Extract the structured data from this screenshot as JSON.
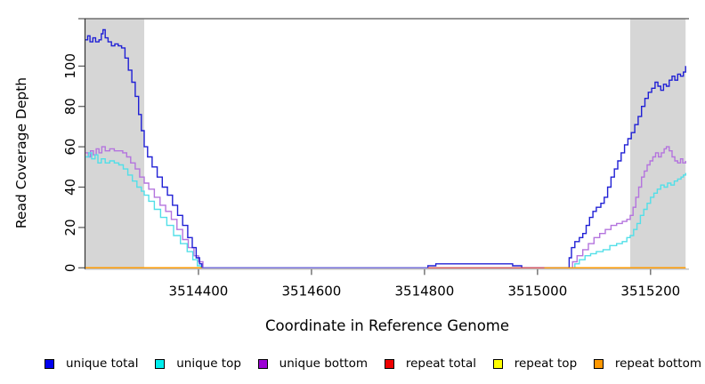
{
  "chart_data": {
    "type": "line",
    "title": "",
    "xlabel": "Coordinate in Reference Genome",
    "ylabel": "Read Coverage Depth",
    "xlim": [
      3514200,
      3515268
    ],
    "ylim": [
      0,
      123.5
    ],
    "xticks": [
      3514400,
      3514600,
      3514800,
      3515000,
      3515200
    ],
    "yticks": [
      0,
      20,
      40,
      60,
      80,
      100
    ],
    "grid": false,
    "legend_position": "bottom",
    "shade_color": "#d6d6d6",
    "shaded_regions": [
      {
        "x0": 3514200,
        "x1": 3514304
      },
      {
        "x0": 3515164,
        "x1": 3515262
      }
    ],
    "series": [
      {
        "name": "unique total",
        "color": "#2020d5",
        "legend_color": "#0000ee",
        "step": true,
        "segments": [
          [
            [
              3514200,
              113
            ],
            [
              3514204,
              115
            ],
            [
              3514208,
              112
            ],
            [
              3514213,
              114
            ],
            [
              3514218,
              112
            ],
            [
              3514224,
              113
            ],
            [
              3514228,
              116
            ],
            [
              3514231,
              118
            ],
            [
              3514235,
              114
            ],
            [
              3514240,
              112
            ],
            [
              3514246,
              110
            ],
            [
              3514252,
              111
            ],
            [
              3514258,
              110
            ],
            [
              3514264,
              109
            ],
            [
              3514270,
              104
            ],
            [
              3514276,
              98
            ],
            [
              3514282,
              92
            ],
            [
              3514288,
              85
            ],
            [
              3514294,
              76
            ],
            [
              3514299,
              68
            ],
            [
              3514304,
              60
            ],
            [
              3514310,
              55
            ],
            [
              3514318,
              50
            ],
            [
              3514327,
              45
            ],
            [
              3514336,
              40
            ],
            [
              3514345,
              36
            ],
            [
              3514354,
              31
            ],
            [
              3514363,
              26
            ],
            [
              3514372,
              21
            ],
            [
              3514381,
              15
            ],
            [
              3514389,
              10
            ],
            [
              3514396,
              5
            ],
            [
              3514402,
              2
            ],
            [
              3514406,
              0
            ],
            [
              3514800,
              0
            ],
            [
              3514806,
              1
            ],
            [
              3514820,
              2
            ],
            [
              3514948,
              2
            ],
            [
              3514956,
              1
            ],
            [
              3514972,
              0
            ],
            [
              3515052,
              0
            ],
            [
              3515056,
              5
            ],
            [
              3515060,
              10
            ],
            [
              3515066,
              13
            ],
            [
              3515074,
              15
            ],
            [
              3515080,
              17
            ],
            [
              3515086,
              21
            ],
            [
              3515092,
              25
            ],
            [
              3515098,
              28
            ],
            [
              3515104,
              30
            ],
            [
              3515112,
              32
            ],
            [
              3515118,
              35
            ],
            [
              3515124,
              40
            ],
            [
              3515130,
              45
            ],
            [
              3515136,
              49
            ],
            [
              3515142,
              53
            ],
            [
              3515148,
              57
            ],
            [
              3515154,
              61
            ],
            [
              3515160,
              64
            ],
            [
              3515166,
              67
            ],
            [
              3515172,
              71
            ],
            [
              3515178,
              75
            ],
            [
              3515184,
              80
            ],
            [
              3515190,
              84
            ],
            [
              3515196,
              87
            ],
            [
              3515202,
              89
            ],
            [
              3515208,
              92
            ],
            [
              3515213,
              90
            ],
            [
              3515218,
              88
            ],
            [
              3515223,
              91
            ],
            [
              3515228,
              90
            ],
            [
              3515233,
              93
            ],
            [
              3515238,
              95
            ],
            [
              3515243,
              93
            ],
            [
              3515248,
              96
            ],
            [
              3515253,
              95
            ],
            [
              3515258,
              97
            ],
            [
              3515262,
              100
            ]
          ]
        ]
      },
      {
        "name": "unique top",
        "color": "#52dfe8",
        "legend_color": "#00eeee",
        "step": true,
        "segments": [
          [
            [
              3514200,
              55
            ],
            [
              3514206,
              57
            ],
            [
              3514211,
              54
            ],
            [
              3514217,
              56
            ],
            [
              3514222,
              52
            ],
            [
              3514228,
              54
            ],
            [
              3514235,
              52
            ],
            [
              3514243,
              53
            ],
            [
              3514251,
              52
            ],
            [
              3514259,
              51
            ],
            [
              3514267,
              49
            ],
            [
              3514275,
              46
            ],
            [
              3514283,
              43
            ],
            [
              3514291,
              40
            ],
            [
              3514299,
              38
            ],
            [
              3514304,
              36
            ],
            [
              3514312,
              33
            ],
            [
              3514322,
              29
            ],
            [
              3514333,
              25
            ],
            [
              3514344,
              21
            ],
            [
              3514356,
              16
            ],
            [
              3514368,
              12
            ],
            [
              3514380,
              8
            ],
            [
              3514390,
              4
            ],
            [
              3514398,
              1
            ],
            [
              3514404,
              0
            ],
            [
              3515058,
              0
            ],
            [
              3515066,
              2
            ],
            [
              3515074,
              4
            ],
            [
              3515084,
              6
            ],
            [
              3515094,
              7
            ],
            [
              3515104,
              8
            ],
            [
              3515116,
              9
            ],
            [
              3515128,
              11
            ],
            [
              3515140,
              12
            ],
            [
              3515150,
              13
            ],
            [
              3515158,
              15
            ],
            [
              3515164,
              16
            ],
            [
              3515170,
              19
            ],
            [
              3515176,
              22
            ],
            [
              3515182,
              26
            ],
            [
              3515188,
              29
            ],
            [
              3515194,
              32
            ],
            [
              3515200,
              35
            ],
            [
              3515206,
              37
            ],
            [
              3515212,
              39
            ],
            [
              3515218,
              41
            ],
            [
              3515224,
              40
            ],
            [
              3515230,
              42
            ],
            [
              3515236,
              41
            ],
            [
              3515242,
              43
            ],
            [
              3515248,
              44
            ],
            [
              3515254,
              45
            ],
            [
              3515258,
              46
            ],
            [
              3515262,
              47
            ]
          ]
        ]
      },
      {
        "name": "unique bottom",
        "color": "#b474de",
        "legend_color": "#9c00d4",
        "step": true,
        "segments": [
          [
            [
              3514200,
              57
            ],
            [
              3514205,
              55
            ],
            [
              3514209,
              58
            ],
            [
              3514214,
              56
            ],
            [
              3514219,
              59
            ],
            [
              3514224,
              57
            ],
            [
              3514229,
              60
            ],
            [
              3514235,
              58
            ],
            [
              3514243,
              59
            ],
            [
              3514251,
              58
            ],
            [
              3514259,
              58
            ],
            [
              3514266,
              57
            ],
            [
              3514273,
              55
            ],
            [
              3514280,
              52
            ],
            [
              3514288,
              49
            ],
            [
              3514296,
              45
            ],
            [
              3514304,
              42
            ],
            [
              3514312,
              39
            ],
            [
              3514322,
              35
            ],
            [
              3514332,
              31
            ],
            [
              3514342,
              28
            ],
            [
              3514352,
              24
            ],
            [
              3514362,
              19
            ],
            [
              3514372,
              14
            ],
            [
              3514382,
              10
            ],
            [
              3514392,
              6
            ],
            [
              3514400,
              3
            ],
            [
              3514408,
              0
            ],
            [
              3515054,
              0
            ],
            [
              3515062,
              3
            ],
            [
              3515070,
              6
            ],
            [
              3515080,
              9
            ],
            [
              3515090,
              12
            ],
            [
              3515100,
              15
            ],
            [
              3515110,
              17
            ],
            [
              3515120,
              19
            ],
            [
              3515130,
              21
            ],
            [
              3515140,
              22
            ],
            [
              3515150,
              23
            ],
            [
              3515158,
              24
            ],
            [
              3515164,
              26
            ],
            [
              3515169,
              30
            ],
            [
              3515174,
              35
            ],
            [
              3515179,
              40
            ],
            [
              3515184,
              45
            ],
            [
              3515189,
              48
            ],
            [
              3515194,
              51
            ],
            [
              3515199,
              53
            ],
            [
              3515204,
              55
            ],
            [
              3515209,
              57
            ],
            [
              3515214,
              55
            ],
            [
              3515219,
              57
            ],
            [
              3515224,
              59
            ],
            [
              3515228,
              60
            ],
            [
              3515233,
              58
            ],
            [
              3515238,
              55
            ],
            [
              3515243,
              53
            ],
            [
              3515248,
              52
            ],
            [
              3515253,
              54
            ],
            [
              3515257,
              52
            ],
            [
              3515262,
              53
            ]
          ]
        ]
      },
      {
        "name": "repeat total",
        "color": "#e05858",
        "legend_color": "#ee0000",
        "step": true,
        "segments": [
          [
            [
              3514805,
              0
            ],
            [
              3515012,
              0
            ]
          ]
        ]
      },
      {
        "name": "repeat top",
        "color": "#ffff00",
        "legend_color": "#ffff00",
        "step": true,
        "segments": [
          [
            [
              3514200,
              0
            ],
            [
              3514405,
              0
            ]
          ],
          [
            [
              3515012,
              0
            ],
            [
              3515262,
              0
            ]
          ]
        ]
      },
      {
        "name": "repeat bottom",
        "color": "#ff9800",
        "legend_color": "#ff9800",
        "step": true,
        "segments": [
          [
            [
              3514200,
              0
            ],
            [
              3514405,
              0
            ]
          ],
          [
            [
              3515012,
              0
            ],
            [
              3515262,
              0
            ]
          ]
        ]
      }
    ],
    "zero_overlap_segments": [
      {
        "x0": 3514406,
        "x1": 3514806,
        "color": "#7b72d8"
      },
      {
        "x0": 3514806,
        "x1": 3515012,
        "color": "#e05858"
      },
      {
        "x0": 3514200,
        "x1": 3514406,
        "color": "#ff9800"
      },
      {
        "x0": 3515012,
        "x1": 3515262,
        "color": "#ff9800"
      }
    ],
    "legend": [
      {
        "label": "unique total",
        "color": "#0000ee"
      },
      {
        "label": "unique top",
        "color": "#00eeee"
      },
      {
        "label": "unique bottom",
        "color": "#9c00d4"
      },
      {
        "label": "repeat total",
        "color": "#ee0000"
      },
      {
        "label": "repeat top",
        "color": "#ffff00"
      },
      {
        "label": "repeat bottom",
        "color": "#ff9800"
      }
    ]
  }
}
